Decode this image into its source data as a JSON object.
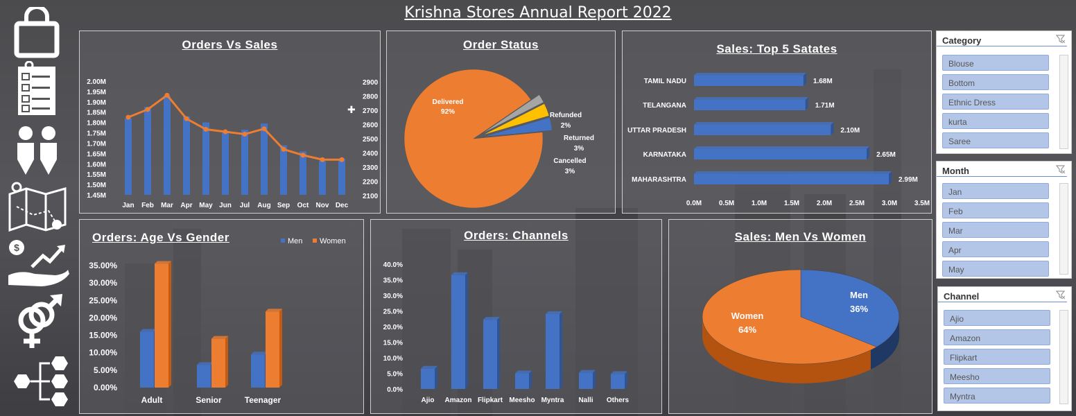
{
  "report_title": "Krishna Stores Annual Report 2022",
  "colors": {
    "blue": "#4472c4",
    "orange": "#ed7d31",
    "gray": "#a5a5a5",
    "yellow": "#ffc000"
  },
  "sidebar_icons": [
    "shopping-bag-icon",
    "checklist-icon",
    "people-icon",
    "map-icon",
    "money-growth-icon",
    "gender-icon",
    "flowchart-icon"
  ],
  "panels": {
    "orders_vs_sales": "Orders Vs Sales",
    "order_status": "Order Status",
    "top_states": "Sales: Top 5 Satates",
    "age_gender": "Orders: Age Vs Gender",
    "channels": "Orders: Channels",
    "men_women": "Sales: Men Vs Women"
  },
  "slicers": {
    "category": {
      "title": "Category",
      "items": [
        "Blouse",
        "Bottom",
        "Ethnic Dress",
        "kurta",
        "Saree"
      ]
    },
    "month": {
      "title": "Month",
      "items": [
        "Jan",
        "Feb",
        "Mar",
        "Apr",
        "May"
      ]
    },
    "channel": {
      "title": "Channel",
      "items": [
        "Ajio",
        "Amazon",
        "Flipkart",
        "Meesho",
        "Myntra"
      ]
    }
  },
  "chart_data": [
    {
      "type": "bar",
      "title": "Orders Vs Sales",
      "categories": [
        "Jan",
        "Feb",
        "Mar",
        "Apr",
        "May",
        "Jun",
        "Jul",
        "Aug",
        "Sep",
        "Oct",
        "Nov",
        "Dec"
      ],
      "y_ticks": [
        "2.00M",
        "1.95M",
        "1.90M",
        "1.85M",
        "1.80M",
        "1.75M",
        "1.70M",
        "1.65M",
        "1.60M",
        "1.55M",
        "1.50M",
        "1.45M"
      ],
      "y2_ticks": [
        "2900",
        "2800",
        "2700",
        "2600",
        "2500",
        "2400",
        "2300",
        "2200",
        "2100"
      ],
      "ylim": [
        1.45,
        2.0
      ],
      "y2lim": [
        2100,
        2900
      ],
      "series": [
        {
          "name": "Sales",
          "type": "bar",
          "values": [
            1.82,
            1.875,
            1.93,
            1.83,
            1.8,
            1.75,
            1.765,
            1.795,
            1.69,
            1.66,
            1.615,
            1.625
          ]
        },
        {
          "name": "Orders",
          "type": "line",
          "values": [
            2675,
            2730,
            2830,
            2665,
            2590,
            2573,
            2556,
            2594,
            2450,
            2408,
            2377,
            2377
          ]
        }
      ]
    },
    {
      "type": "pie",
      "title": "Order Status",
      "labels": [
        "Delivered",
        "Refunded",
        "Returned",
        "Cancelled"
      ],
      "values": [
        92,
        2,
        3,
        3
      ],
      "value_labels": [
        "92%",
        "2%",
        "3%",
        "3%"
      ]
    },
    {
      "type": "bar",
      "title": "Sales: Top 5 Satates",
      "orientation": "horizontal",
      "categories": [
        "TAMIL NADU",
        "TELANGANA",
        "UTTAR PRADESH",
        "KARNATAKA",
        "MAHARASHTRA"
      ],
      "values": [
        1.68,
        1.71,
        2.1,
        2.65,
        2.99
      ],
      "value_labels": [
        "1.68M",
        "1.71M",
        "2.10M",
        "2.65M",
        "2.99M"
      ],
      "x_ticks": [
        "0.0M",
        "0.5M",
        "1.0M",
        "1.5M",
        "2.0M",
        "2.5M",
        "3.0M",
        "3.5M"
      ],
      "xlim": [
        0,
        3.5
      ]
    },
    {
      "type": "bar",
      "title": "Orders: Age Vs Gender",
      "categories": [
        "Adult",
        "Senior",
        "Teenager"
      ],
      "y_ticks": [
        "35.00%",
        "30.00%",
        "25.00%",
        "20.00%",
        "15.00%",
        "10.00%",
        "5.00%",
        "0.00%"
      ],
      "ylim": [
        0,
        35
      ],
      "legend": "top-right",
      "series": [
        {
          "name": "Men",
          "values": [
            16,
            6.5,
            9.5
          ]
        },
        {
          "name": "Women",
          "values": [
            35.5,
            14,
            21.8
          ]
        }
      ]
    },
    {
      "type": "bar",
      "title": "Orders: Channels",
      "categories": [
        "Ajio",
        "Amazon",
        "Flipkart",
        "Meesho",
        "Myntra",
        "Nalli",
        "Others"
      ],
      "values": [
        6.5,
        36.5,
        22.2,
        5.0,
        24.0,
        5.2,
        4.8
      ],
      "y_ticks": [
        "40.0%",
        "35.0%",
        "30.0%",
        "25.0%",
        "20.0%",
        "15.0%",
        "10.0%",
        "5.0%",
        "0.0%"
      ],
      "ylim": [
        0,
        40
      ]
    },
    {
      "type": "pie",
      "title": "Sales: Men Vs Women",
      "labels": [
        "Men",
        "Women"
      ],
      "values": [
        36,
        64
      ],
      "value_labels": [
        "36%",
        "64%"
      ]
    }
  ]
}
